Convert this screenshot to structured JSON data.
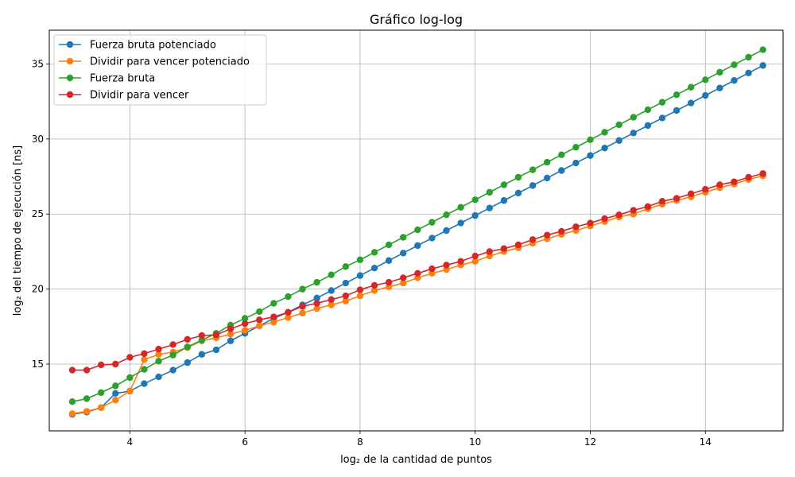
{
  "chart_data": {
    "type": "line",
    "title": "Gráfico log-log",
    "xlabel": "log₂ de la cantidad de puntos",
    "ylabel": "log₂ del tiempo de ejecución [ns]",
    "xlim": [
      2.6,
      15.35
    ],
    "ylim": [
      10.55,
      37.25
    ],
    "xticks": [
      4,
      6,
      8,
      10,
      12,
      14
    ],
    "yticks": [
      15,
      20,
      25,
      30,
      35
    ],
    "grid": true,
    "legend_position": "top-left",
    "x": [
      3.0,
      3.25,
      3.5,
      3.75,
      4.0,
      4.25,
      4.5,
      4.75,
      5.0,
      5.25,
      5.5,
      5.75,
      6.0,
      6.25,
      6.5,
      6.75,
      7.0,
      7.25,
      7.5,
      7.75,
      8.0,
      8.25,
      8.5,
      8.75,
      9.0,
      9.25,
      9.5,
      9.75,
      10.0,
      10.25,
      10.5,
      10.75,
      11.0,
      11.25,
      11.5,
      11.75,
      12.0,
      12.25,
      12.5,
      12.75,
      13.0,
      13.25,
      13.5,
      13.75,
      14.0,
      14.25,
      14.5,
      14.75,
      15.0
    ],
    "series": [
      {
        "name": "Fuerza bruta potenciado",
        "color": "#1f77b4",
        "values": [
          11.65,
          11.8,
          12.1,
          13.05,
          13.2,
          13.7,
          14.15,
          14.6,
          15.1,
          15.65,
          15.95,
          16.55,
          17.05,
          17.55,
          18.05,
          18.45,
          18.95,
          19.4,
          19.9,
          20.4,
          20.9,
          21.4,
          21.9,
          22.4,
          22.9,
          23.4,
          23.9,
          24.4,
          24.9,
          25.4,
          25.9,
          26.4,
          26.9,
          27.4,
          27.9,
          28.4,
          28.9,
          29.4,
          29.9,
          30.4,
          30.9,
          31.4,
          31.9,
          32.4,
          32.9,
          33.4,
          33.9,
          34.4,
          34.9
        ]
      },
      {
        "name": "Dividir para vencer potenciado",
        "color": "#ff7f0e",
        "values": [
          11.7,
          11.85,
          12.1,
          12.6,
          13.2,
          15.3,
          15.65,
          15.8,
          16.1,
          16.55,
          16.75,
          17.0,
          17.25,
          17.55,
          17.8,
          18.1,
          18.4,
          18.7,
          18.95,
          19.2,
          19.55,
          19.9,
          20.15,
          20.4,
          20.75,
          21.05,
          21.3,
          21.6,
          21.85,
          22.2,
          22.5,
          22.75,
          23.05,
          23.35,
          23.65,
          23.9,
          24.2,
          24.5,
          24.8,
          25.0,
          25.35,
          25.65,
          25.9,
          26.15,
          26.45,
          26.75,
          27.0,
          27.3,
          27.55
        ]
      },
      {
        "name": "Fuerza bruta",
        "color": "#2ca02c",
        "values": [
          12.5,
          12.7,
          13.1,
          13.55,
          14.1,
          14.65,
          15.2,
          15.6,
          16.15,
          16.6,
          17.05,
          17.6,
          18.05,
          18.5,
          19.05,
          19.5,
          20.0,
          20.45,
          20.95,
          21.5,
          21.95,
          22.45,
          22.95,
          23.45,
          23.95,
          24.45,
          24.95,
          25.45,
          25.95,
          26.45,
          26.95,
          27.45,
          27.95,
          28.45,
          28.95,
          29.45,
          29.95,
          30.45,
          30.95,
          31.45,
          31.95,
          32.45,
          32.95,
          33.45,
          33.95,
          34.45,
          34.95,
          35.45,
          35.95
        ]
      },
      {
        "name": "Dividir para vencer",
        "color": "#d62728",
        "values": [
          14.6,
          14.6,
          14.95,
          15.0,
          15.45,
          15.7,
          16.0,
          16.3,
          16.65,
          16.9,
          16.95,
          17.35,
          17.7,
          17.95,
          18.15,
          18.45,
          18.85,
          19.05,
          19.3,
          19.55,
          19.95,
          20.25,
          20.45,
          20.75,
          21.05,
          21.35,
          21.6,
          21.85,
          22.2,
          22.5,
          22.7,
          22.95,
          23.3,
          23.6,
          23.85,
          24.15,
          24.4,
          24.7,
          24.95,
          25.25,
          25.5,
          25.85,
          26.05,
          26.35,
          26.65,
          26.95,
          27.15,
          27.45,
          27.7
        ]
      }
    ]
  }
}
